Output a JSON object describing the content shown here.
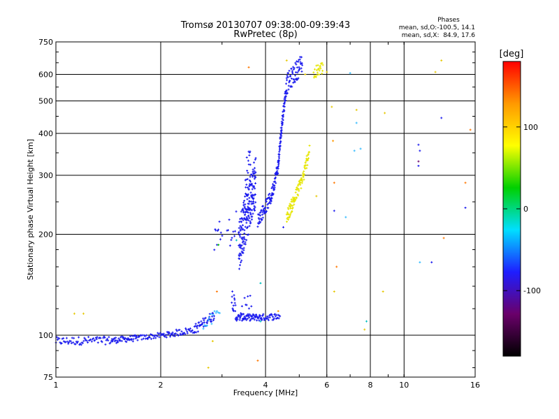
{
  "chart_data": {
    "type": "scatter",
    "title": "Tromsø 20130707 09:38:00-09:39:43",
    "subtitle": "RwPretec (8p)",
    "xlabel": "Frequency [MHz]",
    "ylabel": "Stationary phase Virtual Height [km]",
    "x_scale": "log",
    "y_scale": "log",
    "xlim": [
      1,
      16
    ],
    "ylim": [
      75,
      750
    ],
    "x_ticks": [
      1,
      2,
      4,
      6,
      8,
      10,
      16
    ],
    "x_tick_labels": [
      "1",
      "2",
      "4",
      "6",
      "8",
      "10",
      "16"
    ],
    "y_ticks": [
      75,
      100,
      200,
      300,
      400,
      500,
      600,
      750
    ],
    "y_tick_labels": [
      "75",
      "100",
      "200",
      "300",
      "400",
      "500",
      "600",
      "750"
    ],
    "grid": true,
    "phase_info": {
      "heading": "Phases",
      "line_o": "mean, sd,O:-100.5, 14.1",
      "line_x": "mean, sd,X:  84.9, 17.6"
    },
    "colorbar": {
      "label": "[deg]",
      "range": [
        -180,
        180
      ],
      "ticks": [
        100,
        0,
        -100
      ],
      "tick_labels": [
        "100",
        "0",
        "-100"
      ],
      "colors": [
        "#000000",
        "#6a006a",
        "#1e1eff",
        "#00dfff",
        "#00d000",
        "#ffff00",
        "#ff9900",
        "#ff0000"
      ]
    },
    "series": [
      {
        "color": "#1a1aee",
        "segments": [
          {
            "x": [
              1.0,
              1.45
            ],
            "y": [
              96,
              96.5
            ],
            "n": 70,
            "jitter": 0.012
          },
          {
            "x": [
              1.45,
              1.7
            ],
            "y": [
              96.5,
              98
            ],
            "n": 45,
            "jitter": 0.009
          },
          {
            "x": [
              1.7,
              2.1
            ],
            "y": [
              98,
              100.5
            ],
            "n": 45,
            "jitter": 0.008
          },
          {
            "x": [
              2.1,
              2.5
            ],
            "y": [
              100.5,
              104
            ],
            "n": 40,
            "jitter": 0.01
          },
          {
            "x": [
              2.5,
              2.85
            ],
            "y": [
              104,
              115
            ],
            "n": 45,
            "jitter": 0.015
          },
          {
            "x": [
              3.2,
              3.28
            ],
            "y": [
              132,
              118
            ],
            "n": 14,
            "jitter": 0.03
          },
          {
            "x": [
              3.28,
              3.9
            ],
            "y": [
              113,
              113
            ],
            "n": 70,
            "jitter": 0.01
          },
          {
            "x": [
              3.9,
              4.4
            ],
            "y": [
              113,
              114
            ],
            "n": 35,
            "jitter": 0.01
          },
          {
            "x": [
              3.4,
              3.65
            ],
            "y": [
              120,
              125
            ],
            "n": 10,
            "jitter": 0.03
          },
          {
            "x": [
              2.85,
              3.0
            ],
            "y": [
              195,
              210
            ],
            "n": 10,
            "jitter": 0.04
          },
          {
            "x": [
              3.1,
              3.3
            ],
            "y": [
              195,
              230
            ],
            "n": 10,
            "jitter": 0.05
          },
          {
            "x": [
              3.35,
              3.75
            ],
            "y": [
              185,
              290
            ],
            "n": 200,
            "jitter": 0.08
          },
          {
            "x": [
              3.5,
              3.62
            ],
            "y": [
              300,
              340
            ],
            "n": 15,
            "jitter": 0.04
          },
          {
            "x": [
              3.8,
              4.15
            ],
            "y": [
              220,
              258
            ],
            "n": 55,
            "jitter": 0.02
          },
          {
            "x": [
              4.15,
              4.35
            ],
            "y": [
              258,
              320
            ],
            "n": 45,
            "jitter": 0.02
          },
          {
            "x": [
              4.35,
              4.45
            ],
            "y": [
              320,
              420
            ],
            "n": 40,
            "jitter": 0.02
          },
          {
            "x": [
              4.45,
              4.6
            ],
            "y": [
              420,
              560
            ],
            "n": 40,
            "jitter": 0.02
          },
          {
            "x": [
              4.6,
              5.1
            ],
            "y": [
              560,
              650
            ],
            "n": 60,
            "jitter": 0.03
          }
        ]
      },
      {
        "color": "#e6e600",
        "segments": [
          {
            "x": [
              4.6,
              4.85
            ],
            "y": [
              225,
              255
            ],
            "n": 40,
            "jitter": 0.02
          },
          {
            "x": [
              4.85,
              5.15
            ],
            "y": [
              255,
              300
            ],
            "n": 35,
            "jitter": 0.02
          },
          {
            "x": [
              5.15,
              5.35
            ],
            "y": [
              300,
              360
            ],
            "n": 25,
            "jitter": 0.02
          },
          {
            "x": [
              5.5,
              5.85
            ],
            "y": [
              600,
              630
            ],
            "n": 25,
            "jitter": 0.02
          }
        ]
      },
      {
        "color": "#33bbff",
        "segments": [
          {
            "x": [
              2.65,
              2.95
            ],
            "y": [
              105,
              118
            ],
            "n": 14,
            "jitter": 0.02
          }
        ]
      }
    ],
    "sparse_points": [
      {
        "x": 1.13,
        "y": 116,
        "color": "#e6c800"
      },
      {
        "x": 1.2,
        "y": 116,
        "color": "#e6c800"
      },
      {
        "x": 2.74,
        "y": 80,
        "color": "#e6c800"
      },
      {
        "x": 2.82,
        "y": 96,
        "color": "#e6c800"
      },
      {
        "x": 2.9,
        "y": 135,
        "color": "#ff7700"
      },
      {
        "x": 2.93,
        "y": 186,
        "color": "#00c000"
      },
      {
        "x": 3.3,
        "y": 192,
        "color": "#00c0c0"
      },
      {
        "x": 3.58,
        "y": 630,
        "color": "#ff7700"
      },
      {
        "x": 3.8,
        "y": 84,
        "color": "#ff7700"
      },
      {
        "x": 3.87,
        "y": 143,
        "color": "#00c0c0"
      },
      {
        "x": 3.87,
        "y": 110,
        "color": "#00c0c0"
      },
      {
        "x": 4.35,
        "y": 118,
        "color": "#ff9900"
      },
      {
        "x": 4.5,
        "y": 210,
        "color": "#1a1aee"
      },
      {
        "x": 4.6,
        "y": 660,
        "color": "#e6c800"
      },
      {
        "x": 5.2,
        "y": 600,
        "color": "#e6c800"
      },
      {
        "x": 5.6,
        "y": 260,
        "color": "#e6c800"
      },
      {
        "x": 6.0,
        "y": 610,
        "color": "#e6c800"
      },
      {
        "x": 6.2,
        "y": 480,
        "color": "#e6c800"
      },
      {
        "x": 6.25,
        "y": 380,
        "color": "#ff9900"
      },
      {
        "x": 6.3,
        "y": 285,
        "color": "#ff7700"
      },
      {
        "x": 6.3,
        "y": 235,
        "color": "#1a1aee"
      },
      {
        "x": 6.4,
        "y": 160,
        "color": "#ff7700"
      },
      {
        "x": 6.3,
        "y": 135,
        "color": "#e6c800"
      },
      {
        "x": 6.8,
        "y": 225,
        "color": "#33bbff"
      },
      {
        "x": 7.0,
        "y": 605,
        "color": "#33bbff"
      },
      {
        "x": 7.3,
        "y": 470,
        "color": "#e6c800"
      },
      {
        "x": 7.3,
        "y": 430,
        "color": "#33bbff"
      },
      {
        "x": 7.2,
        "y": 355,
        "color": "#33bbff"
      },
      {
        "x": 7.5,
        "y": 360,
        "color": "#33bbff"
      },
      {
        "x": 7.8,
        "y": 110,
        "color": "#00c0c0"
      },
      {
        "x": 7.7,
        "y": 104,
        "color": "#e6c800"
      },
      {
        "x": 8.8,
        "y": 460,
        "color": "#e6c800"
      },
      {
        "x": 8.7,
        "y": 135,
        "color": "#e6c800"
      },
      {
        "x": 11.0,
        "y": 370,
        "color": "#1a1aee"
      },
      {
        "x": 11.1,
        "y": 355,
        "color": "#1a1aee"
      },
      {
        "x": 11.0,
        "y": 330,
        "color": "#6a006a"
      },
      {
        "x": 11.0,
        "y": 320,
        "color": "#1a1aee"
      },
      {
        "x": 11.1,
        "y": 165,
        "color": "#33bbff"
      },
      {
        "x": 12.0,
        "y": 165,
        "color": "#1a1aee"
      },
      {
        "x": 12.3,
        "y": 610,
        "color": "#e6c800"
      },
      {
        "x": 12.8,
        "y": 660,
        "color": "#e6c800"
      },
      {
        "x": 12.8,
        "y": 445,
        "color": "#1a1aee"
      },
      {
        "x": 13.0,
        "y": 195,
        "color": "#ff7700"
      },
      {
        "x": 15.0,
        "y": 285,
        "color": "#ff7700"
      },
      {
        "x": 15.0,
        "y": 240,
        "color": "#1a1aee"
      },
      {
        "x": 15.5,
        "y": 410,
        "color": "#ff7700"
      }
    ]
  }
}
